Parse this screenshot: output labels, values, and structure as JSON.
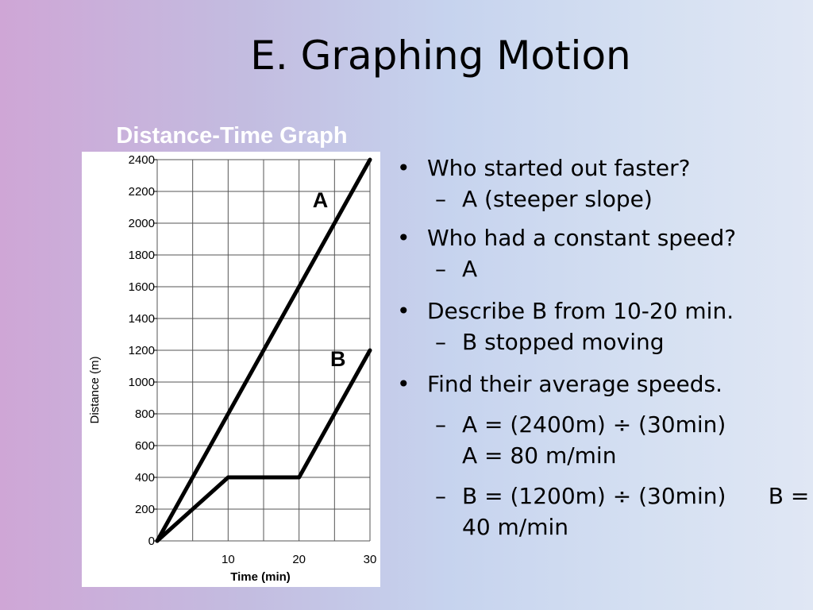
{
  "slide": {
    "title": "E. Graphing Motion"
  },
  "bullets": {
    "q1": "Who started out faster?",
    "a1": "A (steeper slope)",
    "q2": "Who had a constant speed?",
    "a2": "A",
    "q3": "Describe B from 10-20 min.",
    "a3": "B stopped moving",
    "q4": "Find their average speeds.",
    "a4_line1": "A = (2400m) ÷ (30min)",
    "a4_line2": "A = 80 m/min",
    "a5_line1": "B = (1200m) ÷ (30min)      B =",
    "a5_line2": "40 m/min",
    "dash": "–"
  },
  "chart_data": {
    "type": "line",
    "title": "Distance-Time Graph",
    "xlabel": "Time (min)",
    "ylabel": "Distance (m)",
    "xlim": [
      0,
      30
    ],
    "ylim": [
      0,
      2400
    ],
    "x_ticks": [
      10,
      20,
      30
    ],
    "y_ticks": [
      0,
      200,
      400,
      600,
      800,
      1000,
      1200,
      1400,
      1600,
      1800,
      2000,
      2200,
      2400
    ],
    "grid": true,
    "series": [
      {
        "name": "A",
        "points": [
          [
            0,
            0
          ],
          [
            30,
            2400
          ]
        ]
      },
      {
        "name": "B",
        "points": [
          [
            0,
            0
          ],
          [
            10,
            400
          ],
          [
            20,
            400
          ],
          [
            30,
            1200
          ]
        ]
      }
    ],
    "series_label_points": [
      [
        23,
        2100
      ],
      [
        25.5,
        1100
      ]
    ],
    "colors": {
      "line": "#000000",
      "grid": "#555555"
    }
  }
}
